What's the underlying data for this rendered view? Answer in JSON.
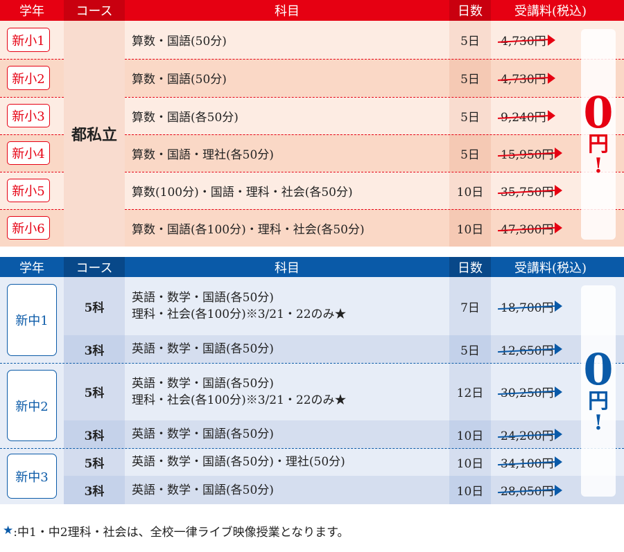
{
  "colors": {
    "red": "#e60012",
    "red_dark": "#c9000f",
    "blue": "#0a5aa8",
    "blue_dark": "#084889"
  },
  "headers": {
    "grade": "学年",
    "course": "コース",
    "subject": "科目",
    "days": "日数",
    "price": "受講料(税込)"
  },
  "elementary": {
    "course": "都私立",
    "free_price": {
      "number": "0",
      "unit": "円",
      "mark": "!"
    },
    "rows": [
      {
        "grade": "新小1",
        "subject": "算数・国語(50分)",
        "days": "5日",
        "price": "4,730円"
      },
      {
        "grade": "新小2",
        "subject": "算数・国語(50分)",
        "days": "5日",
        "price": "4,730円"
      },
      {
        "grade": "新小3",
        "subject": "算数・国語(各50分)",
        "days": "5日",
        "price": "9,240円"
      },
      {
        "grade": "新小4",
        "subject": "算数・国語・理社(各50分)",
        "days": "5日",
        "price": "15,950円"
      },
      {
        "grade": "新小5",
        "subject": "算数(100分)・国語・理科・社会(各50分)",
        "days": "10日",
        "price": "35,750円"
      },
      {
        "grade": "新小6",
        "subject": "算数・国語(各100分)・理科・社会(各50分)",
        "days": "10日",
        "price": "47,300円"
      }
    ]
  },
  "junior": {
    "free_price": {
      "number": "0",
      "unit": "円",
      "mark": "!"
    },
    "grades": [
      {
        "grade": "新中1",
        "rows": [
          {
            "course": "5科",
            "subject": [
              "英語・数学・国語(各50分)",
              "理科・社会(各100分)※3/21・22のみ★"
            ],
            "days": "7日",
            "price": "18,700円"
          },
          {
            "course": "3科",
            "subject": [
              "英語・数学・国語(各50分)"
            ],
            "days": "5日",
            "price": "12,650円"
          }
        ]
      },
      {
        "grade": "新中2",
        "rows": [
          {
            "course": "5科",
            "subject": [
              "英語・数学・国語(各50分)",
              "理科・社会(各100分)※3/21・22のみ★"
            ],
            "days": "12日",
            "price": "30,250円"
          },
          {
            "course": "3科",
            "subject": [
              "英語・数学・国語(各50分)"
            ],
            "days": "10日",
            "price": "24,200円"
          }
        ]
      },
      {
        "grade": "新中3",
        "rows": [
          {
            "course": "5科",
            "subject": [
              "英語・数学・国語(各50分)・理社(50分)"
            ],
            "days": "10日",
            "price": "34,100円"
          },
          {
            "course": "3科",
            "subject": [
              "英語・数学・国語(各50分)"
            ],
            "days": "10日",
            "price": "28,050円"
          }
        ]
      }
    ]
  },
  "footnote": {
    "star": "★",
    "text": ":中1・中2理科・社会は、全校一律ライブ映像授業となります。"
  }
}
